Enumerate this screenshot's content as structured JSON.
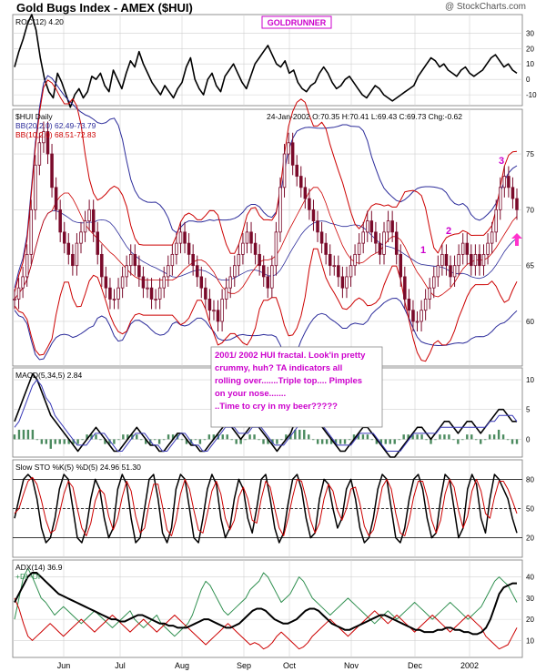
{
  "header": {
    "title": "Gold Bugs Index - AMEX ($HUI)",
    "credit": "@ StockCharts.com",
    "goldrunner": "GOLDRUNNER"
  },
  "chart_data": [
    {
      "type": "line",
      "panel": "roc",
      "legend": "ROC(12) 4.20",
      "yticks": [
        30,
        20,
        10,
        0,
        -10
      ],
      "ylim": [
        -17,
        42
      ],
      "values": [
        8,
        18,
        26,
        36,
        42,
        32,
        14,
        0,
        -8,
        -12,
        4,
        -2,
        -10,
        -18,
        -10,
        -6,
        -12,
        -8,
        2,
        0,
        4,
        -4,
        -8,
        6,
        0,
        -6,
        4,
        12,
        8,
        18,
        10,
        4,
        -2,
        -6,
        -10,
        -4,
        -8,
        -12,
        -6,
        -2,
        8,
        14,
        0,
        -6,
        -10,
        0,
        4,
        -4,
        -8,
        2,
        6,
        10,
        4,
        -2,
        -6,
        2,
        10,
        14,
        18,
        22,
        16,
        10,
        8,
        12,
        4,
        6,
        -2,
        -6,
        -8,
        -4,
        -2,
        4,
        8,
        4,
        -2,
        -6,
        -4,
        0,
        2,
        -2,
        -6,
        -10,
        -12,
        -8,
        -4,
        -6,
        -10,
        -12,
        -14,
        -12,
        -10,
        -8,
        -6,
        -4,
        2,
        6,
        10,
        14,
        12,
        8,
        10,
        6,
        4,
        2,
        6,
        8,
        4,
        2,
        4,
        6,
        10,
        14,
        16,
        12,
        8,
        10,
        6,
        4
      ]
    },
    {
      "type": "candlestick",
      "panel": "price",
      "legend_name": "$HUI Daily",
      "bb20": "BB(20,2.0) 62.49-73.79",
      "bb10": "BB(10,2.0) 68.51-72.83",
      "quote": "24-Jan-2002 O:70.35 H:70.41 L:69.43 C:69.73 Chg:-0.62",
      "yticks": [
        75,
        70,
        65,
        60
      ],
      "ylim": [
        56,
        79
      ],
      "close": [
        62,
        63,
        64,
        66,
        70,
        74,
        76,
        77,
        75,
        72,
        70,
        68,
        67,
        66,
        65,
        67,
        68,
        69,
        70,
        68,
        66,
        64,
        63,
        62,
        62,
        63,
        64,
        65,
        66,
        65,
        64,
        63,
        63,
        62,
        62,
        63,
        64,
        65,
        66,
        67,
        68,
        67,
        66,
        65,
        64,
        63,
        62,
        61,
        61,
        60,
        62,
        63,
        64,
        65,
        66,
        67,
        68,
        67,
        66,
        65,
        64,
        63,
        65,
        68,
        72,
        75,
        76,
        74,
        73,
        72,
        71,
        70,
        69,
        68,
        67,
        66,
        65,
        65,
        64,
        63,
        64,
        65,
        66,
        67,
        68,
        69,
        68,
        67,
        66,
        68,
        69,
        68,
        66,
        64,
        62,
        61,
        60,
        60,
        61,
        62,
        63,
        64,
        65,
        66,
        65,
        64,
        65,
        66,
        67,
        66,
        65,
        66,
        65,
        66,
        67,
        68,
        70,
        72,
        73,
        72,
        71,
        70
      ]
    },
    {
      "type": "line",
      "panel": "macd",
      "legend": "MACD(5,34,5) 2.84",
      "yticks": [
        10,
        5,
        0
      ],
      "ylim": [
        -3,
        12
      ],
      "macd": [
        3,
        5,
        7,
        9,
        11,
        10,
        8,
        6,
        4,
        3,
        2,
        1,
        0,
        -1,
        -2,
        -1,
        0,
        1,
        2,
        1,
        0,
        -1,
        -2,
        -2,
        -1,
        0,
        1,
        2,
        1,
        0,
        -1,
        -1,
        -2,
        -2,
        -1,
        0,
        1,
        1,
        0,
        -1,
        -1,
        -2,
        -2,
        -1,
        0,
        1,
        2,
        3,
        2,
        1,
        0,
        1,
        2,
        3,
        2,
        1,
        0,
        -1,
        -2,
        -1,
        0,
        1,
        3,
        4,
        5,
        5,
        4,
        3,
        2,
        1,
        0,
        -1,
        -2,
        -2,
        -1,
        0,
        1,
        2,
        2,
        1,
        0,
        -1,
        -2,
        -3,
        -3,
        -2,
        -1,
        0,
        1,
        2,
        2,
        1,
        0,
        1,
        2,
        3,
        3,
        2,
        1,
        2,
        3,
        3,
        2,
        1,
        2,
        3,
        4,
        5,
        5,
        4,
        3,
        3
      ],
      "signal": [
        2,
        3,
        5,
        7,
        9,
        10,
        9,
        7,
        6,
        4,
        3,
        2,
        1,
        0,
        -1,
        -1,
        -1,
        0,
        1,
        1,
        1,
        0,
        -1,
        -2,
        -2,
        -1,
        0,
        1,
        1,
        1,
        0,
        -1,
        -1,
        -2,
        -2,
        -1,
        0,
        1,
        1,
        0,
        -1,
        -1,
        -2,
        -2,
        -1,
        0,
        1,
        2,
        2,
        2,
        1,
        1,
        1,
        2,
        2,
        2,
        1,
        0,
        -1,
        -1,
        -1,
        0,
        1,
        2,
        3,
        4,
        4,
        4,
        3,
        2,
        1,
        0,
        -1,
        -1,
        -1,
        -1,
        0,
        1,
        1,
        1,
        1,
        0,
        -1,
        -2,
        -2,
        -2,
        -2,
        -1,
        0,
        1,
        1,
        1,
        1,
        1,
        1,
        2,
        2,
        2,
        2,
        2,
        2,
        2,
        2,
        2,
        2,
        2,
        3,
        3,
        4,
        4,
        4,
        4,
        3
      ]
    },
    {
      "type": "line",
      "panel": "stoch",
      "legend": "Slow STO %K(5) %D(5) 24.96 51.30",
      "yticks": [
        80,
        50,
        20
      ],
      "ylim": [
        0,
        100
      ],
      "k": [
        40,
        60,
        80,
        85,
        80,
        60,
        30,
        15,
        20,
        40,
        70,
        85,
        80,
        50,
        20,
        15,
        30,
        60,
        80,
        70,
        40,
        20,
        30,
        70,
        85,
        75,
        40,
        15,
        20,
        50,
        80,
        85,
        60,
        25,
        15,
        30,
        70,
        85,
        80,
        50,
        20,
        15,
        40,
        70,
        85,
        75,
        40,
        20,
        30,
        60,
        80,
        70,
        40,
        25,
        50,
        80,
        85,
        60,
        30,
        15,
        25,
        55,
        80,
        85,
        70,
        40,
        20,
        25,
        60,
        80,
        75,
        50,
        30,
        40,
        70,
        80,
        60,
        30,
        15,
        20,
        40,
        70,
        85,
        80,
        50,
        20,
        15,
        30,
        60,
        80,
        85,
        70,
        40,
        20,
        25,
        60,
        85,
        80,
        50,
        20,
        30,
        70,
        85,
        75,
        40,
        25,
        60,
        85,
        80,
        70,
        60,
        40,
        25
      ],
      "d": [
        45,
        50,
        65,
        78,
        82,
        75,
        58,
        38,
        25,
        28,
        45,
        65,
        78,
        72,
        50,
        30,
        22,
        35,
        58,
        70,
        65,
        42,
        28,
        40,
        62,
        78,
        68,
        42,
        25,
        30,
        55,
        75,
        75,
        52,
        28,
        22,
        38,
        65,
        80,
        70,
        48,
        28,
        25,
        45,
        68,
        78,
        65,
        40,
        28,
        38,
        62,
        72,
        60,
        38,
        35,
        60,
        78,
        72,
        50,
        30,
        22,
        40,
        62,
        80,
        78,
        60,
        38,
        25,
        35,
        60,
        75,
        68,
        48,
        38,
        50,
        70,
        72,
        55,
        32,
        22,
        28,
        48,
        72,
        80,
        70,
        45,
        25,
        22,
        38,
        62,
        78,
        78,
        62,
        38,
        25,
        38,
        65,
        80,
        72,
        48,
        30,
        42,
        68,
        80,
        68,
        45,
        40,
        62,
        78,
        78,
        70,
        58,
        45
      ]
    },
    {
      "type": "line",
      "panel": "adx",
      "legend": "ADX(14) 36.9",
      "legend2": "+DI -DI",
      "yticks": [
        40,
        30,
        20,
        10
      ],
      "ylim": [
        2,
        48
      ],
      "adx": [
        28,
        32,
        36,
        40,
        42,
        42,
        40,
        38,
        36,
        34,
        32,
        31,
        30,
        29,
        28,
        27,
        26,
        25,
        24,
        23,
        22,
        21,
        20,
        20,
        19,
        19,
        20,
        21,
        22,
        22,
        21,
        20,
        19,
        18,
        18,
        17,
        17,
        16,
        16,
        16,
        17,
        18,
        19,
        20,
        20,
        19,
        18,
        17,
        16,
        16,
        17,
        18,
        20,
        22,
        24,
        25,
        25,
        24,
        22,
        20,
        19,
        18,
        18,
        19,
        20,
        22,
        24,
        25,
        25,
        24,
        22,
        20,
        18,
        17,
        16,
        15,
        15,
        16,
        17,
        18,
        19,
        20,
        21,
        22,
        22,
        21,
        20,
        19,
        18,
        17,
        16,
        15,
        15,
        14,
        14,
        14,
        15,
        15,
        16,
        16,
        15,
        15,
        14,
        14,
        13,
        13,
        14,
        16,
        20,
        26,
        32,
        35,
        36,
        37,
        37
      ],
      "pdi": [
        20,
        30,
        40,
        44,
        40,
        35,
        30,
        28,
        25,
        22,
        24,
        26,
        24,
        22,
        20,
        18,
        20,
        22,
        24,
        22,
        20,
        18,
        16,
        18,
        20,
        22,
        24,
        20,
        18,
        16,
        18,
        20,
        22,
        18,
        16,
        14,
        12,
        14,
        16,
        18,
        22,
        28,
        34,
        38,
        36,
        32,
        28,
        24,
        22,
        24,
        26,
        28,
        30,
        34,
        36,
        38,
        42,
        40,
        36,
        32,
        28,
        30,
        32,
        36,
        40,
        38,
        34,
        30,
        28,
        26,
        24,
        22,
        24,
        26,
        28,
        30,
        28,
        26,
        24,
        22,
        20,
        18,
        20,
        22,
        24,
        22,
        20,
        22,
        24,
        26,
        28,
        26,
        24,
        22,
        20,
        22,
        24,
        26,
        28,
        26,
        24,
        22,
        20,
        22,
        24,
        26,
        30,
        34,
        38,
        40,
        38,
        36,
        32,
        28
      ],
      "mdi": [
        30,
        25,
        18,
        12,
        10,
        12,
        14,
        16,
        18,
        16,
        14,
        12,
        14,
        16,
        18,
        20,
        18,
        16,
        14,
        16,
        18,
        20,
        22,
        20,
        18,
        16,
        14,
        16,
        18,
        20,
        18,
        16,
        14,
        16,
        18,
        20,
        22,
        20,
        18,
        16,
        14,
        12,
        10,
        8,
        10,
        12,
        14,
        16,
        18,
        16,
        14,
        12,
        10,
        8,
        9,
        8,
        6,
        7,
        9,
        12,
        14,
        12,
        10,
        8,
        6,
        7,
        9,
        12,
        14,
        16,
        18,
        20,
        18,
        16,
        14,
        12,
        14,
        16,
        18,
        20,
        22,
        24,
        22,
        20,
        18,
        20,
        22,
        20,
        18,
        16,
        14,
        16,
        18,
        20,
        22,
        20,
        18,
        16,
        14,
        16,
        18,
        20,
        22,
        20,
        18,
        16,
        12,
        10,
        8,
        6,
        7,
        8,
        12,
        16
      ]
    }
  ],
  "xaxis": {
    "months": [
      "Jun",
      "Jul",
      "Aug",
      "Sep",
      "Oct",
      "Nov",
      "Dec",
      "2002"
    ]
  },
  "annotations": {
    "comment": [
      "2001/ 2002 HUI  fractal.  Look'in pretty",
      "crummy, huh?  TA indicators all",
      "rolling over.......Triple top....  Pimples",
      "on your nose.......",
      "..Time to cry in my beer?????"
    ],
    "n1": "1",
    "n2": "2",
    "n3": "3"
  },
  "colors": {
    "bb20": "#2b2b9a",
    "bb10": "#cc0000",
    "candle": "#7a0a2a",
    "annotation": "#cc00cc",
    "macd_hist": "#4b8b5f",
    "pdi": "#2f8f4f",
    "mdi": "#cc0000"
  }
}
